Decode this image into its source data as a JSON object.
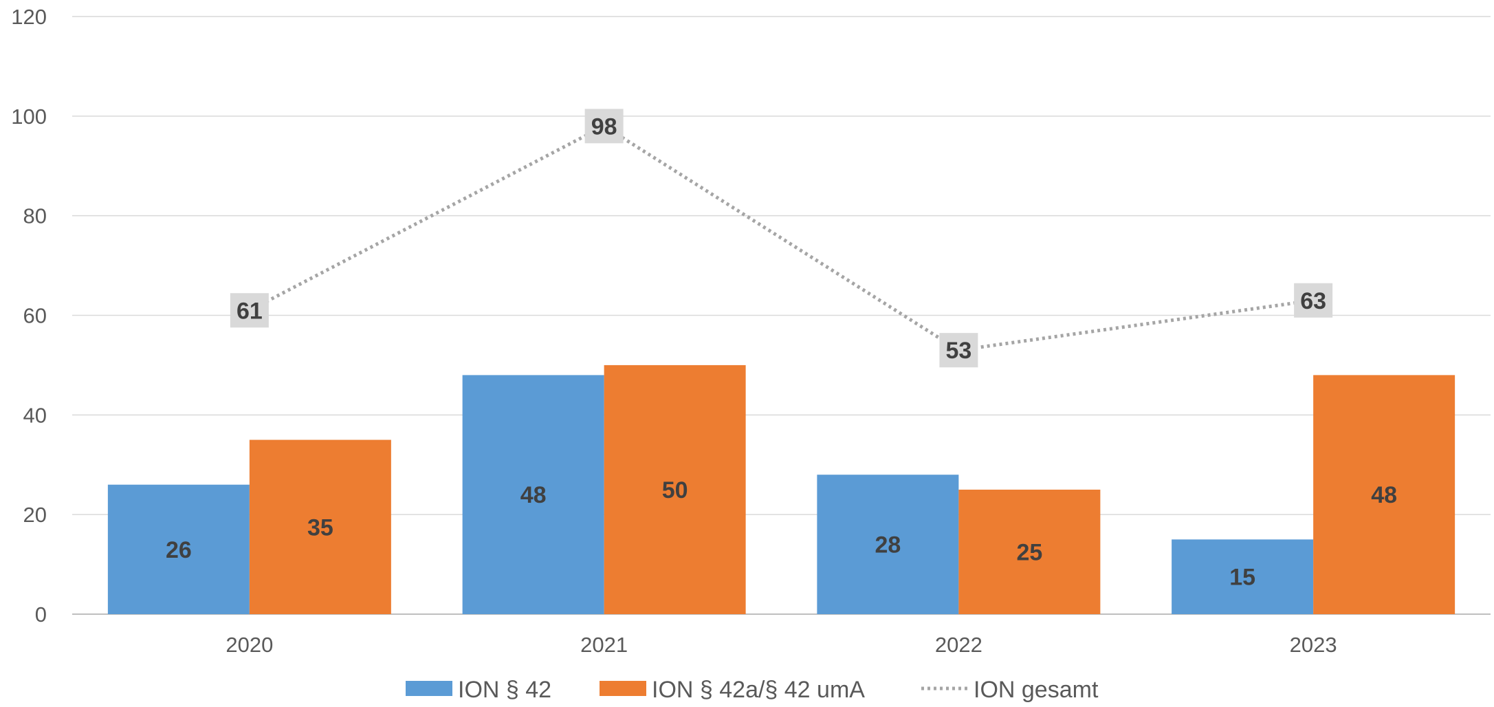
{
  "chart_data": {
    "type": "bar",
    "title": "",
    "xlabel": "",
    "ylabel": "",
    "categories": [
      "2020",
      "2021",
      "2022",
      "2023"
    ],
    "ylim": [
      0,
      120
    ],
    "yticks": [
      0,
      20,
      40,
      60,
      80,
      100,
      120
    ],
    "grid": true,
    "legend_position": "bottom",
    "series": [
      {
        "name": "ION § 42",
        "kind": "bar",
        "color": "#5B9BD5",
        "values": [
          26,
          48,
          28,
          15
        ]
      },
      {
        "name": "ION § 42a/§ 42 umA",
        "kind": "bar",
        "color": "#ED7D31",
        "values": [
          35,
          50,
          25,
          48
        ]
      },
      {
        "name": "ION gesamt",
        "kind": "line",
        "style": "dotted",
        "color": "#A5A5A5",
        "values": [
          61,
          98,
          53,
          63
        ]
      }
    ]
  }
}
